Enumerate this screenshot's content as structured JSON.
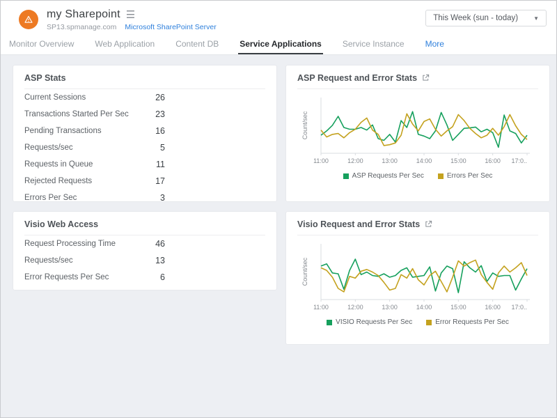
{
  "header": {
    "title": "my Sharepoint",
    "subdomain": "SP13.spmanage.com",
    "server_link": "Microsoft SharePoint Server",
    "time_range": "This Week (sun - today)",
    "status_icon": "warning-triangle"
  },
  "tabs": [
    {
      "label": "Monitor Overview",
      "active": false
    },
    {
      "label": "Web Application",
      "active": false
    },
    {
      "label": "Content DB",
      "active": false
    },
    {
      "label": "Service Applications",
      "active": true
    },
    {
      "label": "Service Instance",
      "active": false
    },
    {
      "label": "More",
      "active": false,
      "link": true
    }
  ],
  "panels": {
    "asp_stats": {
      "title": "ASP Stats",
      "rows": [
        {
          "label": "Current Sessions",
          "value": "26"
        },
        {
          "label": "Transactions Started Per Sec",
          "value": "23"
        },
        {
          "label": "Pending Transactions",
          "value": "16"
        },
        {
          "label": "Requests/sec",
          "value": "5"
        },
        {
          "label": "Requests in Queue",
          "value": "11"
        },
        {
          "label": "Rejected Requests",
          "value": "17"
        },
        {
          "label": "Errors Per Sec",
          "value": "3"
        }
      ]
    },
    "visio_stats": {
      "title": "Visio Web Access",
      "rows": [
        {
          "label": "Request Processing Time",
          "value": "46"
        },
        {
          "label": "Requests/sec",
          "value": "13"
        },
        {
          "label": "Error Requests Per Sec",
          "value": "6"
        }
      ]
    }
  },
  "chart_data": [
    {
      "type": "line",
      "title": "ASP Request and Error Stats",
      "ylabel": "Count/sec",
      "x_labels": [
        "11:00",
        "12:00",
        "13:00",
        "14:00",
        "15:00",
        "16:00",
        "17:0.."
      ],
      "x_interval_minutes": 10,
      "ylim": [
        0,
        12
      ],
      "grid": false,
      "legend_position": "bottom",
      "series": [
        {
          "name": "ASP Requests Per Sec",
          "color": "#16a05d",
          "values": [
            4.2,
            5.2,
            6.5,
            8.6,
            6.0,
            5.6,
            5.6,
            6.0,
            5.4,
            6.6,
            3.4,
            3.0,
            4.4,
            2.6,
            7.6,
            6.0,
            9.7,
            4.4,
            4.0,
            3.4,
            5.2,
            9.5,
            6.6,
            3.0,
            4.4,
            5.8,
            5.9,
            6.1,
            5.0,
            5.6,
            4.8,
            1.4,
            8.9,
            5.2,
            4.6,
            2.4,
            4.2
          ]
        },
        {
          "name": "Errors Per Sec",
          "color": "#c4a21f",
          "values": [
            5.4,
            3.8,
            4.4,
            4.6,
            3.6,
            4.8,
            5.6,
            7.2,
            8.2,
            5.4,
            4.4,
            1.8,
            2.0,
            2.4,
            4.2,
            9.2,
            6.8,
            5.2,
            7.4,
            8.0,
            5.6,
            4.0,
            5.2,
            6.2,
            9.0,
            7.6,
            5.8,
            4.6,
            3.6,
            4.2,
            5.8,
            4.2,
            6.2,
            9.0,
            6.4,
            4.4,
            3.2
          ]
        }
      ]
    },
    {
      "type": "line",
      "title": "Visio Request and Error Stats",
      "ylabel": "Count/sec",
      "x_labels": [
        "11:00",
        "12:00",
        "13:00",
        "14:00",
        "15:00",
        "16:00",
        "17:0.."
      ],
      "x_interval_minutes": 10,
      "ylim": [
        0,
        12
      ],
      "grid": false,
      "legend_position": "bottom",
      "series": [
        {
          "name": "VISIO Requests Per Sec",
          "color": "#16a05d",
          "values": [
            7.8,
            8.3,
            6.2,
            6.0,
            2.4,
            6.8,
            9.4,
            5.8,
            6.4,
            5.6,
            5.4,
            6.0,
            5.2,
            5.6,
            6.8,
            7.4,
            5.2,
            5.4,
            5.6,
            7.6,
            2.0,
            6.2,
            7.8,
            7.2,
            1.6,
            8.8,
            7.4,
            6.4,
            7.9,
            4.2,
            6.2,
            5.4,
            5.6,
            5.6,
            2.2,
            4.8,
            7.2
          ]
        },
        {
          "name": "Error Requests Per Sec",
          "color": "#c4a21f",
          "values": [
            7.4,
            6.8,
            5.2,
            2.6,
            1.8,
            5.4,
            5.0,
            6.6,
            7.0,
            6.4,
            5.6,
            4.0,
            2.2,
            2.6,
            5.8,
            5.0,
            7.2,
            4.6,
            3.4,
            5.6,
            6.6,
            4.2,
            1.8,
            5.2,
            9.0,
            7.8,
            8.6,
            9.2,
            5.8,
            4.0,
            2.4,
            6.2,
            7.8,
            6.4,
            7.4,
            8.6,
            5.6
          ]
        }
      ]
    }
  ],
  "colors": {
    "accent_orange": "#ed7a23",
    "link_blue": "#2f80dc",
    "series_green": "#16a05d",
    "series_gold": "#c4a21f",
    "content_bg": "#edeff3",
    "axis": "#d9dce0"
  }
}
